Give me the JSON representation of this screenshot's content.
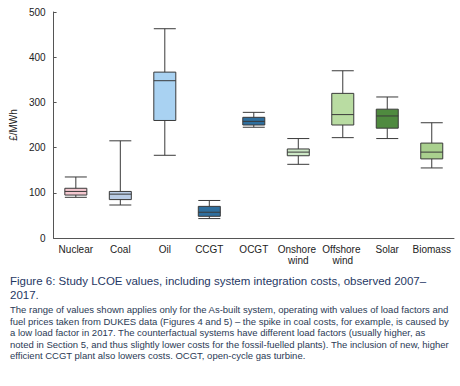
{
  "chart_data": {
    "type": "boxplot",
    "title": "Figure 6: Study LCOE values, including system integration costs, observed 2007–2017.",
    "subtitle": "The range of values shown applies only for the As-built system, operating with values of load factors and fuel prices taken from DUKES data (Figures 4 and 5) – the spike in coal costs, for example, is caused by a low load factor in 2017. The counterfactual systems have different load factors (usually higher, as noted in Section 5, and thus slightly lower costs for the fossil-fuelled plants). The inclusion of new, higher efficient CCGT plant also lowers costs. OCGT, open-cycle gas turbine.",
    "y_label": "£/MWh",
    "categories": [
      "Nuclear",
      "Coal",
      "Oil",
      "CCGT",
      "OCGT",
      "Onshore wind",
      "Offshore wind",
      "Solar",
      "Biomass"
    ],
    "values": [
      [
        90,
        95,
        103,
        110,
        135
      ],
      [
        73,
        85,
        97,
        103,
        215
      ],
      [
        183,
        260,
        348,
        367,
        463
      ],
      [
        43,
        48,
        57,
        70,
        83
      ],
      [
        245,
        250,
        258,
        267,
        278
      ],
      [
        163,
        182,
        190,
        197,
        220
      ],
      [
        222,
        250,
        273,
        320,
        370
      ],
      [
        220,
        243,
        270,
        285,
        312
      ],
      [
        155,
        175,
        190,
        210,
        255
      ]
    ],
    "colors": [
      "#f3c7cf",
      "#b9cce6",
      "#a9d2f2",
      "#2f6f9e",
      "#2f6f9e",
      "#cde8c6",
      "#b9dca2",
      "#4f8a3f",
      "#a9d08e"
    ],
    "ylim": [
      0,
      500
    ],
    "yticks": [
      0,
      100,
      200,
      300,
      400,
      500
    ],
    "grid": false
  }
}
